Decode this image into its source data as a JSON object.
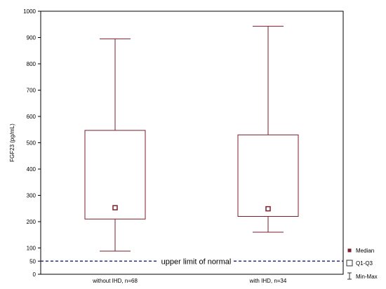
{
  "chart_data": {
    "type": "box",
    "ylabel": "FGF23 (pg/mL)",
    "ylim": [
      0,
      1000
    ],
    "yticks": [
      0,
      50,
      100,
      200,
      300,
      400,
      500,
      600,
      700,
      800,
      900,
      1000
    ],
    "categories": [
      "without IHD, n=68",
      "with IHD, n=34"
    ],
    "boxes": [
      {
        "category": "without IHD, n=68",
        "min": 88,
        "q1": 210,
        "median": 253,
        "q3": 547,
        "max": 895
      },
      {
        "category": "with IHD, n=34",
        "min": 160,
        "q1": 220,
        "median": 249,
        "q3": 530,
        "max": 943
      }
    ],
    "reference_line": {
      "value": 50,
      "label": "upper limit of normal",
      "style": "dashed",
      "color": "#2b2f8f"
    },
    "legend": {
      "position": "bottom-right",
      "items": [
        "Median",
        "Q1-Q3",
        "Min-Max"
      ]
    },
    "colors": {
      "box": "#7a1f2b",
      "median_marker": "#7a1f2b",
      "frame": "#000000"
    },
    "grid": false
  }
}
